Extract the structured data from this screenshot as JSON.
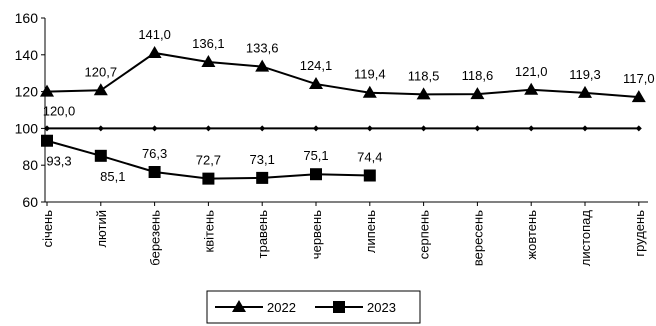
{
  "chart_data": {
    "type": "line",
    "categories": [
      "січень",
      "лютий",
      "березень",
      "квітень",
      "травень",
      "червень",
      "липень",
      "серпень",
      "вересень",
      "жовтень",
      "листопад",
      "грудень"
    ],
    "series": [
      {
        "name": "2022",
        "color": "#000000",
        "marker": "triangle",
        "values": [
          120.0,
          120.7,
          141.0,
          136.1,
          133.6,
          124.1,
          119.4,
          118.5,
          118.6,
          121.0,
          119.3,
          117.0
        ],
        "value_labels": [
          "120,0",
          "120,7",
          "141,0",
          "136,1",
          "133,6",
          "124,1",
          "119,4",
          "118,5",
          "118,6",
          "121,0",
          "119,3",
          "117,0"
        ]
      },
      {
        "name": "2023",
        "color": "#000000",
        "marker": "square",
        "values": [
          93.3,
          85.1,
          76.3,
          72.7,
          73.1,
          75.1,
          74.4,
          null,
          null,
          null,
          null,
          null
        ],
        "value_labels": [
          "93,3",
          "85,1",
          "76,3",
          "72,7",
          "73,1",
          "75,1",
          "74,4",
          null,
          null,
          null,
          null,
          null
        ]
      },
      {
        "color": "#000000",
        "marker": "diamond",
        "values": [
          100,
          100,
          100,
          100,
          100,
          100,
          100,
          100,
          100,
          100,
          100,
          100
        ]
      }
    ],
    "ylim": [
      60,
      160
    ],
    "yticks": [
      60,
      80,
      100,
      120,
      140,
      160
    ],
    "grid": false,
    "legend": "bottom"
  }
}
